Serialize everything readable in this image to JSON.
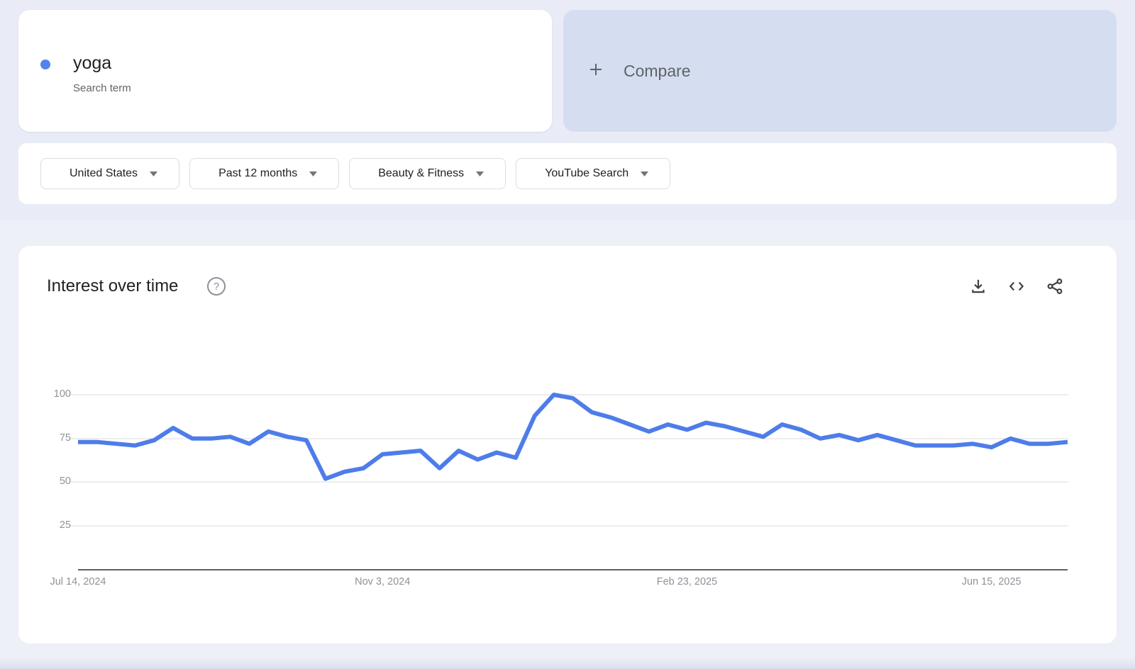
{
  "term_card": {
    "term": "yoga",
    "term_type": "Search term",
    "dot_color": "#5383ec"
  },
  "compare_card": {
    "label": "Compare"
  },
  "filters": [
    {
      "label": "United States"
    },
    {
      "label": "Past 12 months"
    },
    {
      "label": "Beauty & Fitness"
    },
    {
      "label": "YouTube Search"
    }
  ],
  "chart_header": {
    "title": "Interest over time",
    "help_glyph": "?"
  },
  "chart_data": {
    "type": "line",
    "title": "Interest over time",
    "series_name": "yoga",
    "frequency": "weekly",
    "values": [
      73,
      73,
      72,
      71,
      74,
      81,
      75,
      75,
      76,
      72,
      79,
      76,
      74,
      52,
      56,
      58,
      66,
      67,
      68,
      58,
      68,
      63,
      67,
      64,
      88,
      100,
      98,
      90,
      87,
      83,
      79,
      83,
      80,
      84,
      82,
      79,
      76,
      83,
      80,
      75,
      77,
      74,
      77,
      74,
      71,
      71,
      71,
      72,
      70,
      75,
      72,
      72,
      73
    ],
    "ylim": [
      0,
      100
    ],
    "y_ticks": [
      100,
      75,
      50,
      25
    ],
    "x_tick_labels": [
      "Jul 14, 2024",
      "Nov 3, 2024",
      "Feb 23, 2025",
      "Jun 15, 2025"
    ],
    "x_tick_positions": [
      0,
      16,
      32,
      48
    ],
    "line_color": "#4e7de9",
    "grid_color": "#e7e7e7",
    "axis_color": "#616161",
    "legend_position": "none",
    "grid": true
  }
}
